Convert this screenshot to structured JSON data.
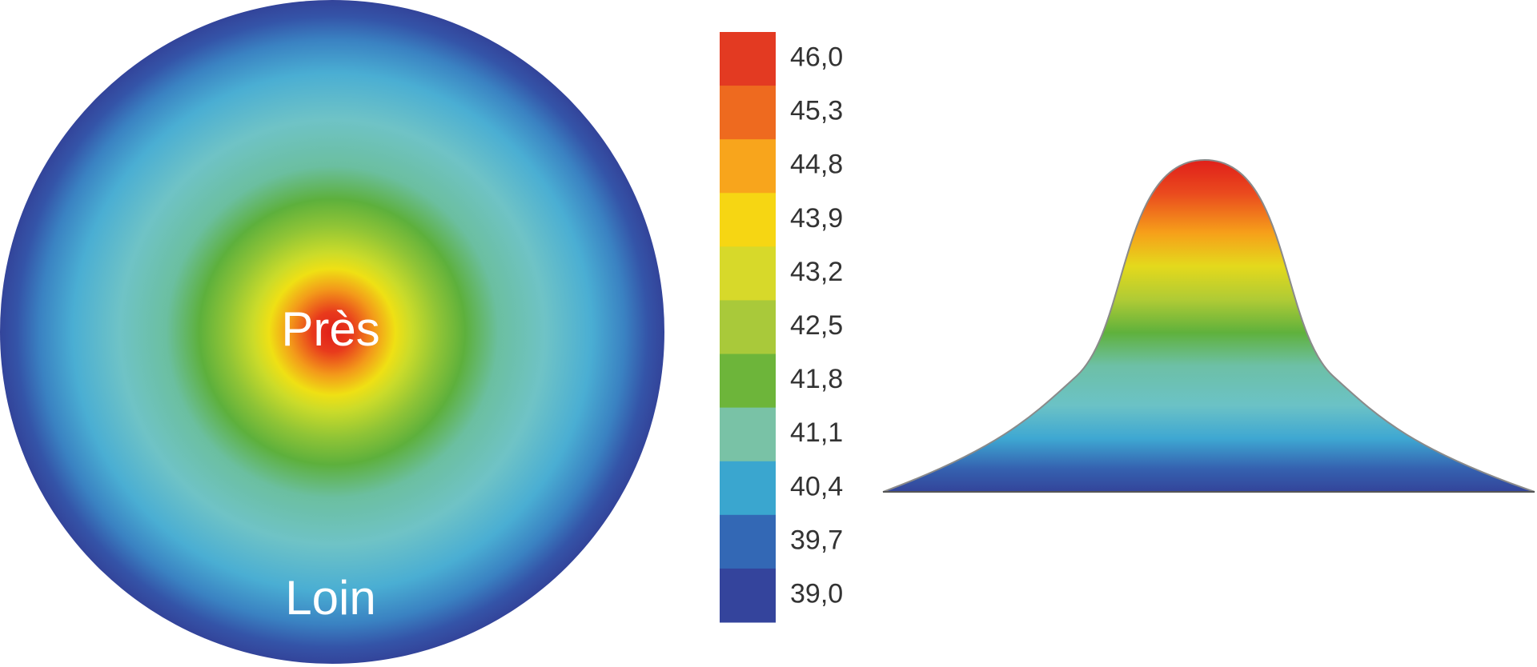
{
  "lens_map": {
    "near_label": "Près",
    "far_label": "Loin",
    "near_icon": "lens-power-map-icon"
  },
  "color_scale": {
    "bands": [
      {
        "label": "46,0",
        "color": "#e33a22"
      },
      {
        "label": "45,3",
        "color": "#ee6a1f"
      },
      {
        "label": "44,8",
        "color": "#f8a51c"
      },
      {
        "label": "43,9",
        "color": "#f6d613"
      },
      {
        "label": "43,2",
        "color": "#d7d92a"
      },
      {
        "label": "42,5",
        "color": "#a9c93a"
      },
      {
        "label": "41,8",
        "color": "#6db53a"
      },
      {
        "label": "41,1",
        "color": "#79c2a6"
      },
      {
        "label": "40,4",
        "color": "#3aa6cf"
      },
      {
        "label": "39,7",
        "color": "#3368b5"
      },
      {
        "label": "39,0",
        "color": "#34449c"
      }
    ]
  },
  "profile": {
    "icon": "power-profile-curve-icon"
  }
}
